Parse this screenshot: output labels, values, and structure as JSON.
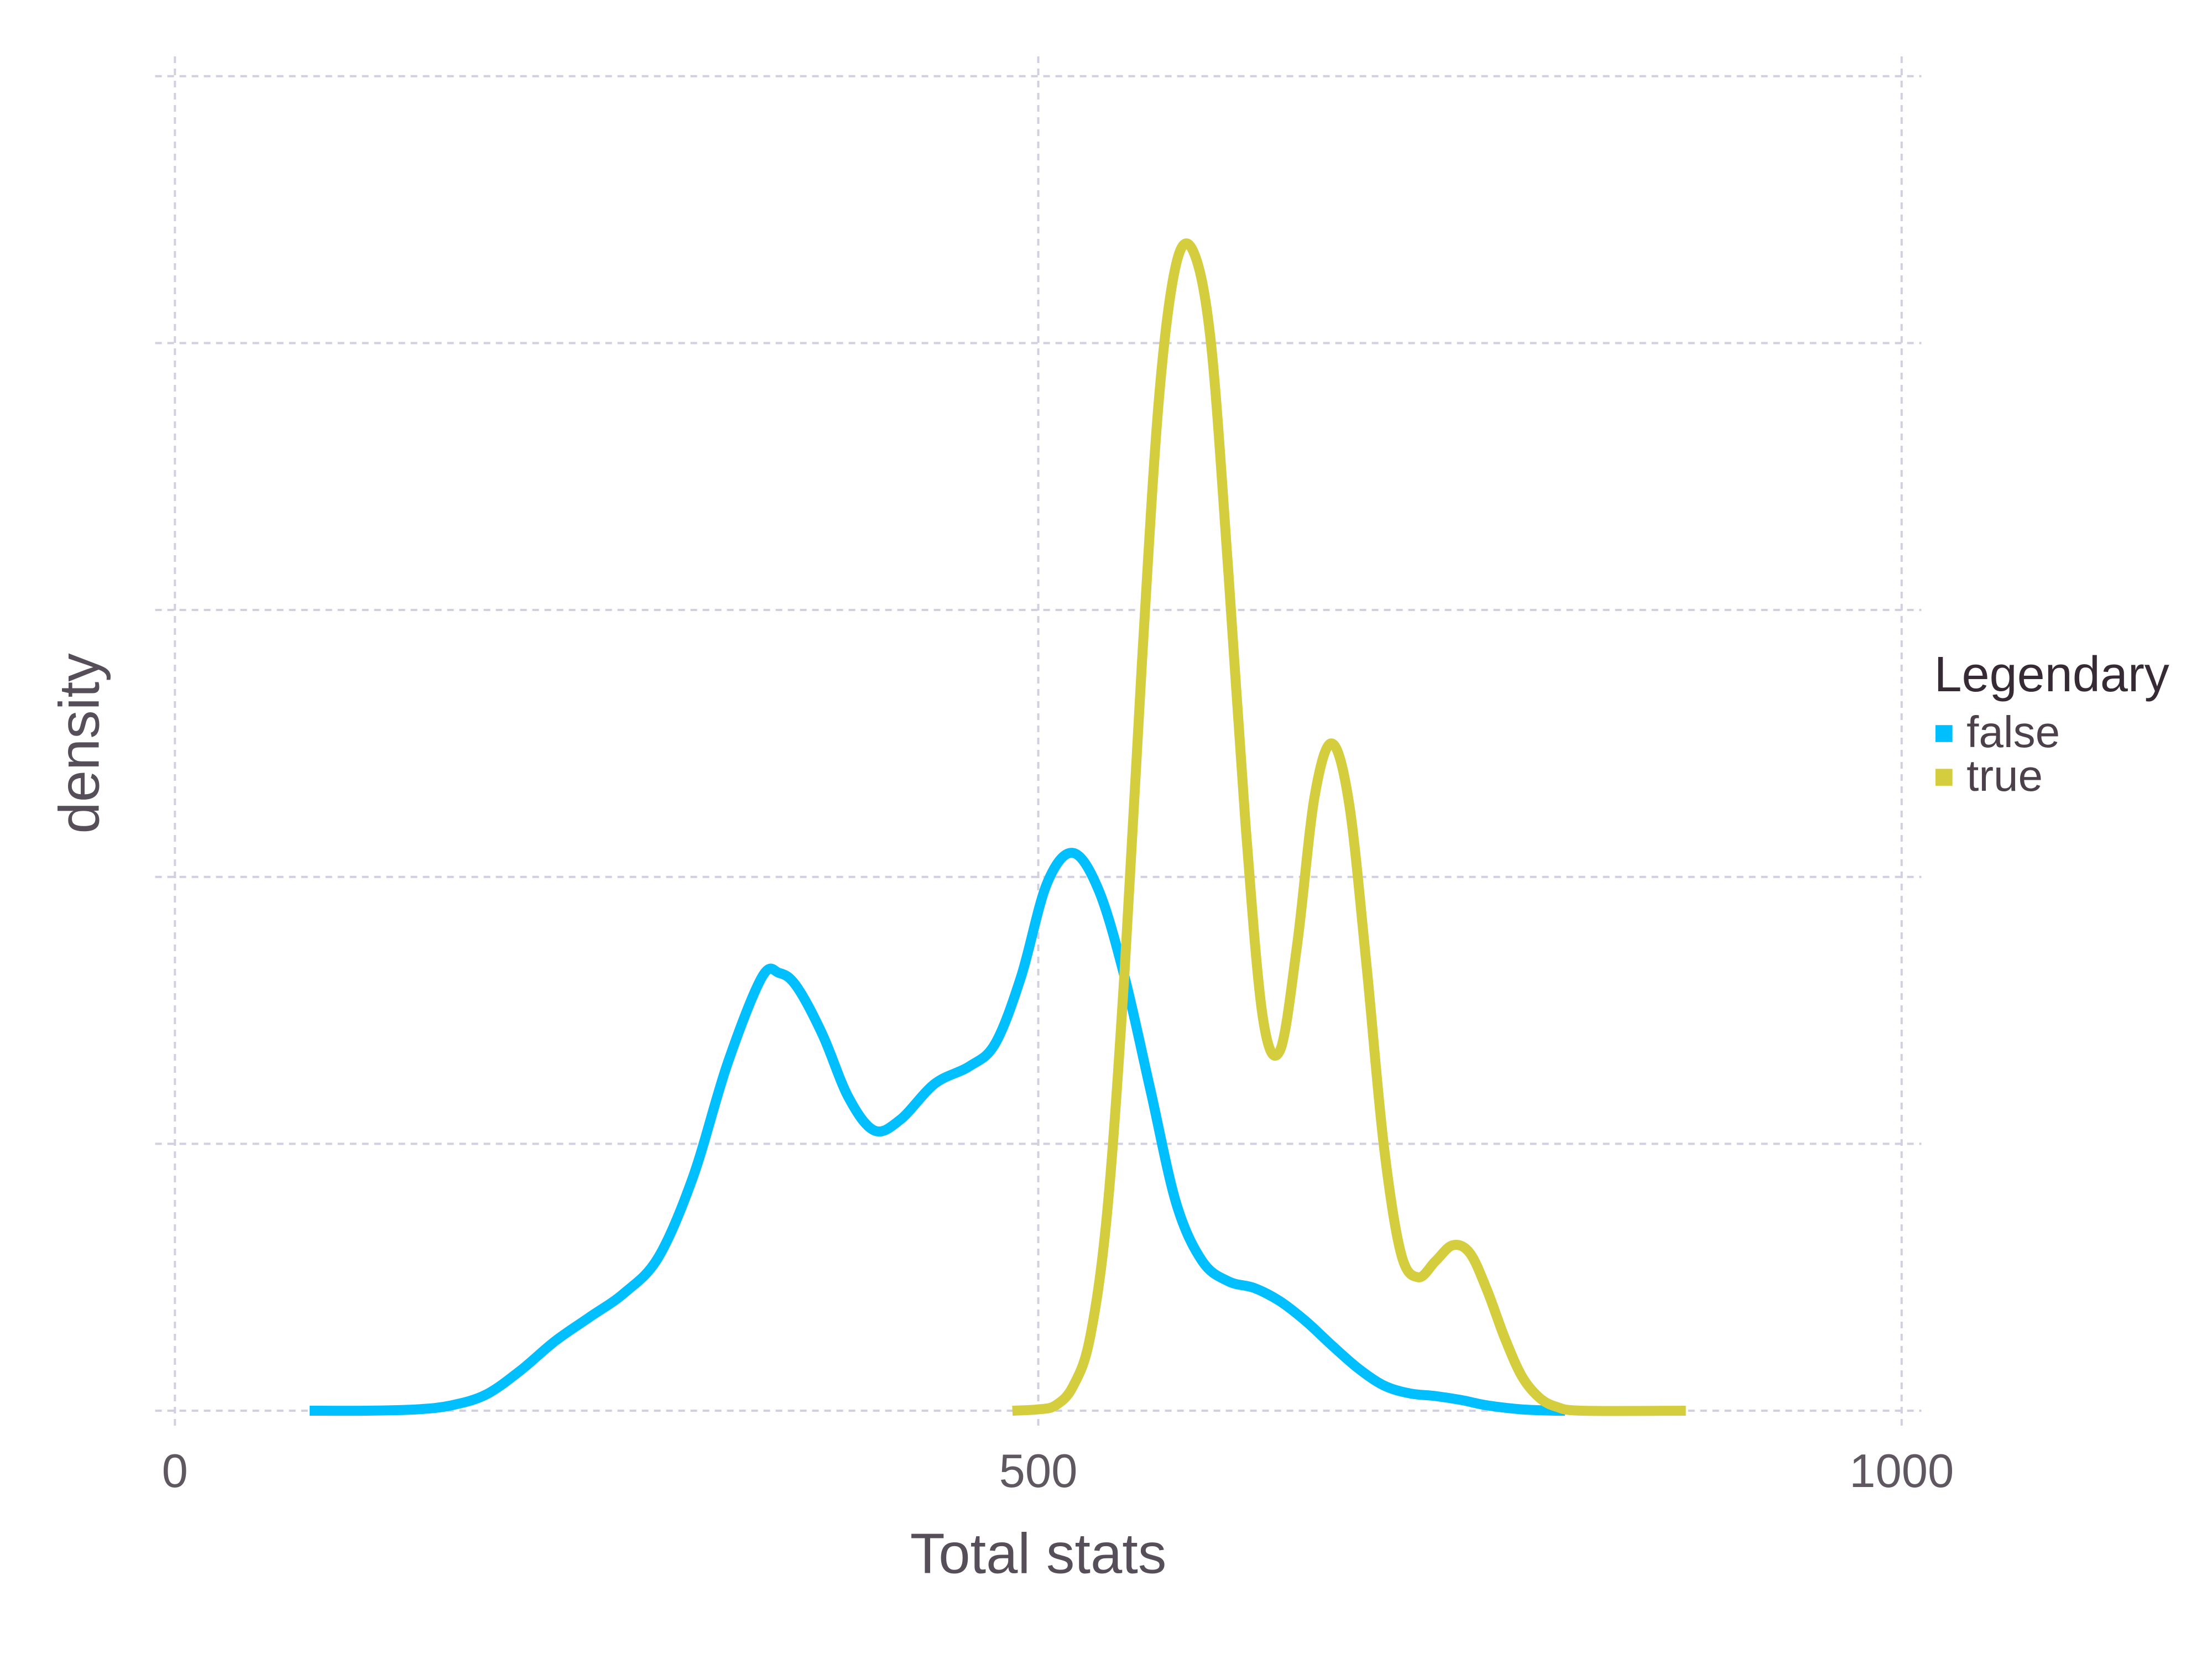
{
  "chart_data": {
    "type": "line",
    "title": "",
    "xlabel": "Total stats",
    "ylabel": "density",
    "xlim": [
      0,
      1000
    ],
    "ylim": [
      0,
      1
    ],
    "x_ticks": [
      "0",
      "500",
      "1000"
    ],
    "y_gridlines": [
      0,
      0.2,
      0.4,
      0.6,
      0.8,
      1.0
    ],
    "y_tick_labels_shown": false,
    "grid": true,
    "legend": {
      "title": "Legendary",
      "placement": "right"
    },
    "series": [
      {
        "name": "false",
        "color": "#00bfff",
        "points": [
          [
            78,
            0.0
          ],
          [
            110,
            0.0
          ],
          [
            140,
            0.001
          ],
          [
            160,
            0.004
          ],
          [
            180,
            0.012
          ],
          [
            200,
            0.03
          ],
          [
            220,
            0.052
          ],
          [
            240,
            0.07
          ],
          [
            260,
            0.088
          ],
          [
            280,
            0.115
          ],
          [
            300,
            0.175
          ],
          [
            320,
            0.26
          ],
          [
            340,
            0.325
          ],
          [
            350,
            0.328
          ],
          [
            360,
            0.318
          ],
          [
            375,
            0.282
          ],
          [
            390,
            0.235
          ],
          [
            405,
            0.21
          ],
          [
            420,
            0.218
          ],
          [
            440,
            0.245
          ],
          [
            460,
            0.258
          ],
          [
            475,
            0.275
          ],
          [
            490,
            0.325
          ],
          [
            505,
            0.395
          ],
          [
            520,
            0.418
          ],
          [
            535,
            0.39
          ],
          [
            550,
            0.325
          ],
          [
            565,
            0.24
          ],
          [
            580,
            0.155
          ],
          [
            595,
            0.112
          ],
          [
            610,
            0.097
          ],
          [
            625,
            0.092
          ],
          [
            640,
            0.082
          ],
          [
            655,
            0.067
          ],
          [
            670,
            0.049
          ],
          [
            685,
            0.032
          ],
          [
            700,
            0.019
          ],
          [
            715,
            0.013
          ],
          [
            730,
            0.011
          ],
          [
            745,
            0.008
          ],
          [
            760,
            0.004
          ],
          [
            780,
            0.001
          ],
          [
            800,
            0.0
          ],
          [
            805,
            0.0
          ]
        ]
      },
      {
        "name": "true",
        "color": "#d4cd3d",
        "points": [
          [
            485,
            0.0
          ],
          [
            500,
            0.001
          ],
          [
            510,
            0.004
          ],
          [
            520,
            0.018
          ],
          [
            530,
            0.055
          ],
          [
            540,
            0.15
          ],
          [
            550,
            0.33
          ],
          [
            560,
            0.56
          ],
          [
            570,
            0.76
          ],
          [
            580,
            0.86
          ],
          [
            590,
            0.868
          ],
          [
            600,
            0.8
          ],
          [
            610,
            0.63
          ],
          [
            620,
            0.44
          ],
          [
            630,
            0.295
          ],
          [
            640,
            0.27
          ],
          [
            650,
            0.35
          ],
          [
            660,
            0.46
          ],
          [
            670,
            0.5
          ],
          [
            680,
            0.455
          ],
          [
            690,
            0.335
          ],
          [
            700,
            0.2
          ],
          [
            710,
            0.118
          ],
          [
            720,
            0.1
          ],
          [
            730,
            0.112
          ],
          [
            740,
            0.124
          ],
          [
            750,
            0.118
          ],
          [
            760,
            0.09
          ],
          [
            770,
            0.055
          ],
          [
            780,
            0.026
          ],
          [
            790,
            0.01
          ],
          [
            800,
            0.003
          ],
          [
            815,
            0.0
          ],
          [
            875,
            0.0
          ]
        ]
      }
    ]
  }
}
